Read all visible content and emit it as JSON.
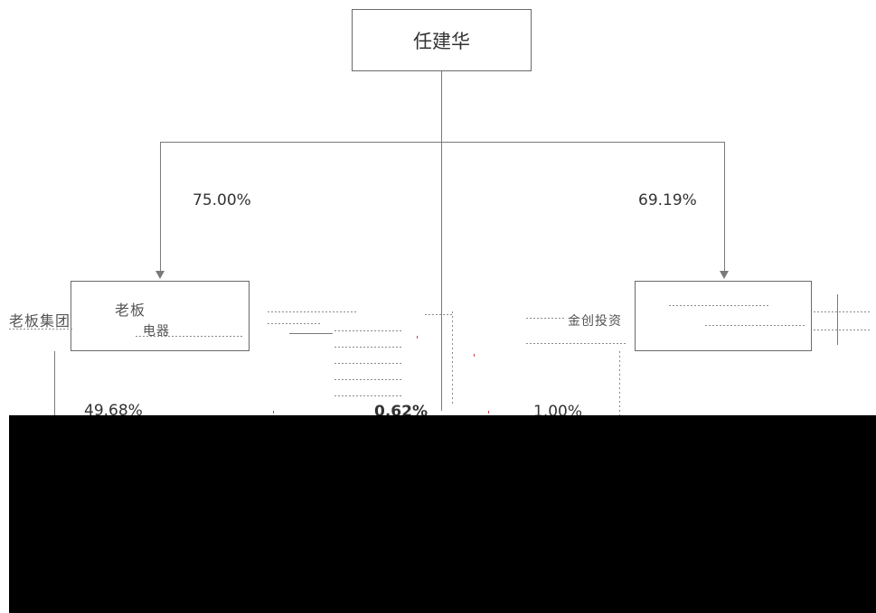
{
  "root": {
    "name": "任建华"
  },
  "left_branch": {
    "percent": "75.00%",
    "entity_fragments": [
      "老板集团",
      "老板",
      "电器"
    ],
    "sub_percent": "49.68%"
  },
  "right_branch": {
    "percent": "69.19%",
    "entity_fragments": [
      "金创投资"
    ]
  },
  "middle_percents": [
    "0.62%",
    "1.00%"
  ],
  "colors": {
    "line": "#7a7a7a",
    "box_border": "#6a6a6a",
    "text": "#333333",
    "redaction": "#000000",
    "mark": "#d04040"
  }
}
